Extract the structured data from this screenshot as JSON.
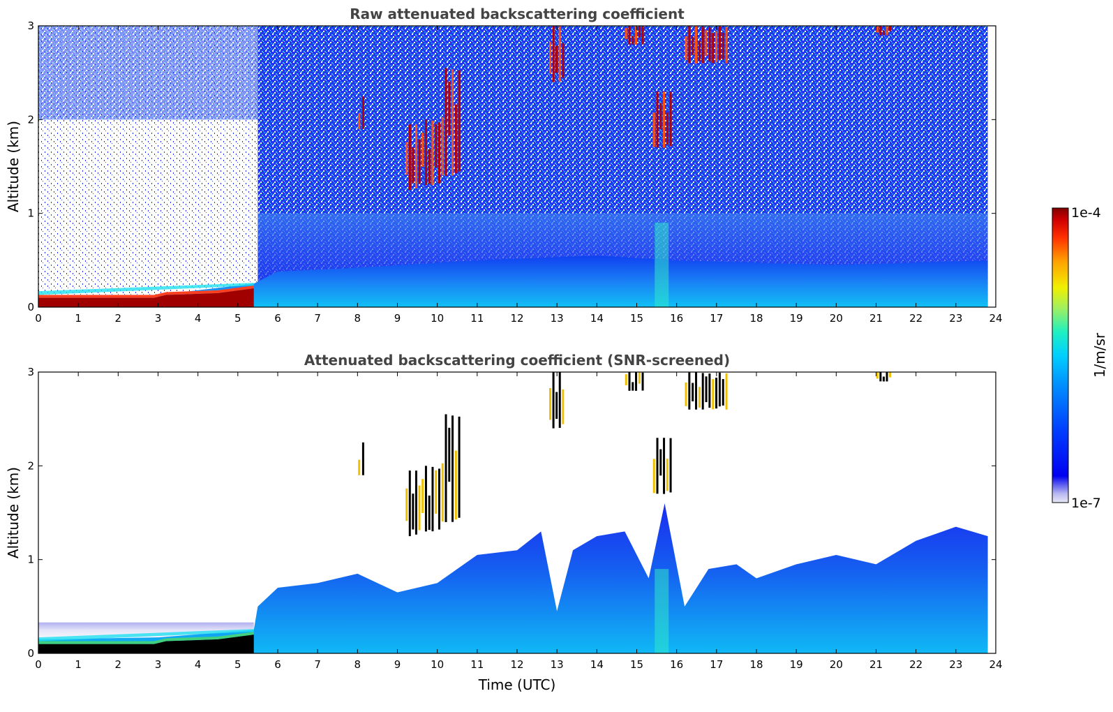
{
  "chart_data": [
    {
      "type": "heatmap",
      "title": "Raw attenuated backscattering coefficient",
      "xlabel": "",
      "ylabel": "Altitude (km)",
      "xlim": [
        0,
        24
      ],
      "ylim": [
        0,
        3
      ],
      "xticks": [
        "0",
        "1",
        "2",
        "3",
        "4",
        "5",
        "6",
        "7",
        "8",
        "9",
        "10",
        "11",
        "12",
        "13",
        "14",
        "15",
        "16",
        "17",
        "18",
        "19",
        "20",
        "21",
        "22",
        "23",
        "24"
      ],
      "yticks": [
        "0",
        "1",
        "2",
        "3"
      ],
      "grid": false,
      "data_end_hour": 23.8,
      "boundary_layer_top_km": [
        {
          "x": 0,
          "y": 0.13
        },
        {
          "x": 3,
          "y": 0.13
        },
        {
          "x": 5.4,
          "y": 0.25
        },
        {
          "x": 6,
          "y": 0.38
        },
        {
          "x": 8,
          "y": 0.42
        },
        {
          "x": 11,
          "y": 0.5
        },
        {
          "x": 14,
          "y": 0.55
        },
        {
          "x": 16,
          "y": 0.5
        },
        {
          "x": 20,
          "y": 0.45
        },
        {
          "x": 23.8,
          "y": 0.5
        }
      ],
      "aerosol_layer_top_km": 0.9,
      "cloud_features": [
        {
          "x_start": 8.0,
          "x_end": 8.2,
          "y_bottom": 1.9,
          "y_top": 2.25
        },
        {
          "x_start": 9.2,
          "x_end": 9.6,
          "y_bottom": 1.25,
          "y_top": 1.95
        },
        {
          "x_start": 9.6,
          "x_end": 10.1,
          "y_bottom": 1.3,
          "y_top": 2.0
        },
        {
          "x_start": 10.1,
          "x_end": 10.6,
          "y_bottom": 1.4,
          "y_top": 2.55
        },
        {
          "x_start": 12.8,
          "x_end": 13.2,
          "y_bottom": 2.4,
          "y_top": 3.0
        },
        {
          "x_start": 14.7,
          "x_end": 15.2,
          "y_bottom": 2.8,
          "y_top": 3.0
        },
        {
          "x_start": 15.4,
          "x_end": 15.9,
          "y_bottom": 1.7,
          "y_top": 2.3
        },
        {
          "x_start": 16.2,
          "x_end": 17.3,
          "y_bottom": 2.6,
          "y_top": 3.0
        },
        {
          "x_start": 21.0,
          "x_end": 21.4,
          "y_bottom": 2.9,
          "y_top": 3.0
        }
      ]
    },
    {
      "type": "heatmap",
      "title": "Attenuated backscattering coefficient (SNR-screened)",
      "xlabel": "Time (UTC)",
      "ylabel": "Altitude (km)",
      "xlim": [
        0,
        24
      ],
      "ylim": [
        0,
        3
      ],
      "xticks": [
        "0",
        "1",
        "2",
        "3",
        "4",
        "5",
        "6",
        "7",
        "8",
        "9",
        "10",
        "11",
        "12",
        "13",
        "14",
        "15",
        "16",
        "17",
        "18",
        "19",
        "20",
        "21",
        "22",
        "23",
        "24"
      ],
      "yticks": [
        "0",
        "1",
        "2",
        "3"
      ],
      "grid": false,
      "data_end_hour": 23.8,
      "boundary_layer_top_km": [
        {
          "x": 0,
          "y": 0.15
        },
        {
          "x": 3,
          "y": 0.17
        },
        {
          "x": 5.4,
          "y": 0.25
        },
        {
          "x": 5.5,
          "y": 0.5
        },
        {
          "x": 6,
          "y": 0.7
        },
        {
          "x": 7,
          "y": 0.75
        },
        {
          "x": 8,
          "y": 0.85
        },
        {
          "x": 9,
          "y": 0.65
        },
        {
          "x": 10,
          "y": 0.75
        },
        {
          "x": 11,
          "y": 1.05
        },
        {
          "x": 12,
          "y": 1.1
        },
        {
          "x": 12.6,
          "y": 1.3
        },
        {
          "x": 13,
          "y": 0.45
        },
        {
          "x": 13.4,
          "y": 1.1
        },
        {
          "x": 14,
          "y": 1.25
        },
        {
          "x": 14.7,
          "y": 1.3
        },
        {
          "x": 15.3,
          "y": 0.8
        },
        {
          "x": 15.7,
          "y": 1.6
        },
        {
          "x": 16.2,
          "y": 0.5
        },
        {
          "x": 16.8,
          "y": 0.9
        },
        {
          "x": 17.5,
          "y": 0.95
        },
        {
          "x": 18,
          "y": 0.8
        },
        {
          "x": 19,
          "y": 0.95
        },
        {
          "x": 20,
          "y": 1.05
        },
        {
          "x": 21,
          "y": 0.95
        },
        {
          "x": 22,
          "y": 1.2
        },
        {
          "x": 23,
          "y": 1.35
        },
        {
          "x": 23.8,
          "y": 1.25
        }
      ],
      "cloud_features": [
        {
          "x_start": 8.0,
          "x_end": 8.2,
          "y_bottom": 1.9,
          "y_top": 2.25
        },
        {
          "x_start": 9.2,
          "x_end": 9.6,
          "y_bottom": 1.25,
          "y_top": 1.95
        },
        {
          "x_start": 9.6,
          "x_end": 10.1,
          "y_bottom": 1.3,
          "y_top": 2.0
        },
        {
          "x_start": 10.1,
          "x_end": 10.6,
          "y_bottom": 1.4,
          "y_top": 2.55
        },
        {
          "x_start": 12.8,
          "x_end": 13.2,
          "y_bottom": 2.4,
          "y_top": 3.0
        },
        {
          "x_start": 14.7,
          "x_end": 15.2,
          "y_bottom": 2.8,
          "y_top": 3.0
        },
        {
          "x_start": 15.4,
          "x_end": 15.9,
          "y_bottom": 1.7,
          "y_top": 2.3
        },
        {
          "x_start": 16.2,
          "x_end": 17.3,
          "y_bottom": 2.6,
          "y_top": 3.0
        },
        {
          "x_start": 21.0,
          "x_end": 21.4,
          "y_bottom": 2.9,
          "y_top": 3.0
        }
      ]
    }
  ],
  "colorbar": {
    "label": "1/m/sr",
    "max_label": "1e-4",
    "min_label": "1e-7",
    "colormap": [
      "#e8e8f8",
      "#b8b8f0",
      "#6060f0",
      "#0000f0",
      "#0040ff",
      "#0090ff",
      "#00d0ff",
      "#20f0c0",
      "#a0f060",
      "#f0f000",
      "#ffa000",
      "#ff3000",
      "#d00000",
      "#800000"
    ],
    "screened_color": "#000000"
  }
}
